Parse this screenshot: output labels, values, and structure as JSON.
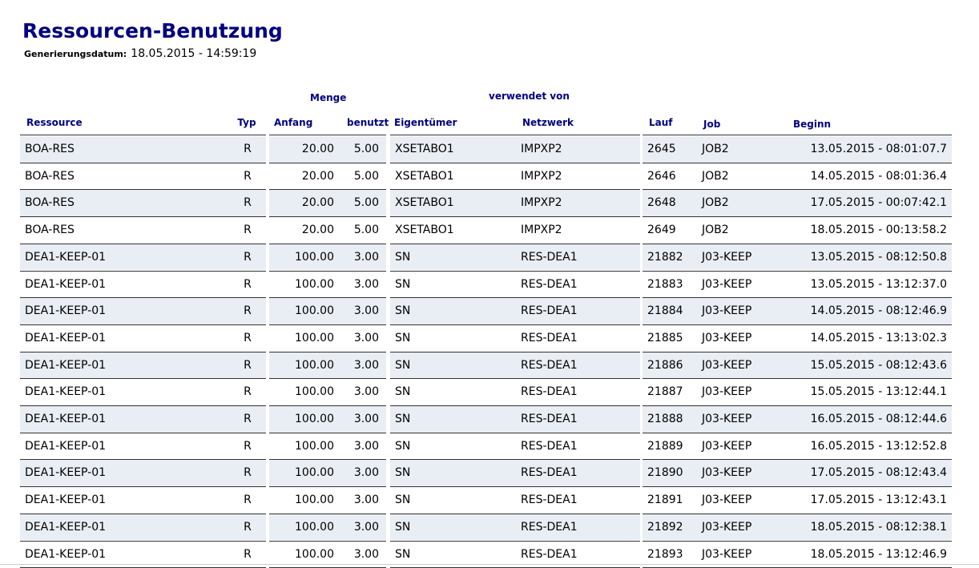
{
  "header": {
    "title": "Ressourcen-Benutzung",
    "date_label": "Generierungsdatum:",
    "date_value": "18.05.2015 - 14:59:19"
  },
  "table": {
    "groups": [
      "Menge",
      "verwendet von"
    ],
    "columns": [
      "Ressource",
      "Typ",
      "Anfang",
      "benutzt",
      "Eigentümer",
      "Netzwerk",
      "Lauf",
      "Job",
      "Beginn"
    ],
    "rows": [
      [
        "BOA-RES",
        "R",
        "20.00",
        "5.00",
        "XSETABO1",
        "IMPXP2",
        "2645",
        "JOB2",
        "13.05.2015 - 08:01:07.7"
      ],
      [
        "BOA-RES",
        "R",
        "20.00",
        "5.00",
        "XSETABO1",
        "IMPXP2",
        "2646",
        "JOB2",
        "14.05.2015 - 08:01:36.4"
      ],
      [
        "BOA-RES",
        "R",
        "20.00",
        "5.00",
        "XSETABO1",
        "IMPXP2",
        "2648",
        "JOB2",
        "17.05.2015 - 00:07:42.1"
      ],
      [
        "BOA-RES",
        "R",
        "20.00",
        "5.00",
        "XSETABO1",
        "IMPXP2",
        "2649",
        "JOB2",
        "18.05.2015 - 00:13:58.2"
      ],
      [
        "DEA1-KEEP-01",
        "R",
        "100.00",
        "3.00",
        "SN",
        "RES-DEA1",
        "21882",
        "J03-KEEP",
        "13.05.2015 - 08:12:50.8"
      ],
      [
        "DEA1-KEEP-01",
        "R",
        "100.00",
        "3.00",
        "SN",
        "RES-DEA1",
        "21883",
        "J03-KEEP",
        "13.05.2015 - 13:12:37.0"
      ],
      [
        "DEA1-KEEP-01",
        "R",
        "100.00",
        "3.00",
        "SN",
        "RES-DEA1",
        "21884",
        "J03-KEEP",
        "14.05.2015 - 08:12:46.9"
      ],
      [
        "DEA1-KEEP-01",
        "R",
        "100.00",
        "3.00",
        "SN",
        "RES-DEA1",
        "21885",
        "J03-KEEP",
        "14.05.2015 - 13:13:02.3"
      ],
      [
        "DEA1-KEEP-01",
        "R",
        "100.00",
        "3.00",
        "SN",
        "RES-DEA1",
        "21886",
        "J03-KEEP",
        "15.05.2015 - 08:12:43.6"
      ],
      [
        "DEA1-KEEP-01",
        "R",
        "100.00",
        "3.00",
        "SN",
        "RES-DEA1",
        "21887",
        "J03-KEEP",
        "15.05.2015 - 13:12:44.1"
      ],
      [
        "DEA1-KEEP-01",
        "R",
        "100.00",
        "3.00",
        "SN",
        "RES-DEA1",
        "21888",
        "J03-KEEP",
        "16.05.2015 - 08:12:44.6"
      ],
      [
        "DEA1-KEEP-01",
        "R",
        "100.00",
        "3.00",
        "SN",
        "RES-DEA1",
        "21889",
        "J03-KEEP",
        "16.05.2015 - 13:12:52.8"
      ],
      [
        "DEA1-KEEP-01",
        "R",
        "100.00",
        "3.00",
        "SN",
        "RES-DEA1",
        "21890",
        "J03-KEEP",
        "17.05.2015 - 08:12:43.4"
      ],
      [
        "DEA1-KEEP-01",
        "R",
        "100.00",
        "3.00",
        "SN",
        "RES-DEA1",
        "21891",
        "J03-KEEP",
        "17.05.2015 - 13:12:43.1"
      ],
      [
        "DEA1-KEEP-01",
        "R",
        "100.00",
        "3.00",
        "SN",
        "RES-DEA1",
        "21892",
        "J03-KEEP",
        "18.05.2015 - 08:12:38.1"
      ],
      [
        "DEA1-KEEP-01",
        "R",
        "100.00",
        "3.00",
        "SN",
        "RES-DEA1",
        "21893",
        "J03-KEEP",
        "18.05.2015 - 13:12:46.9"
      ]
    ]
  }
}
